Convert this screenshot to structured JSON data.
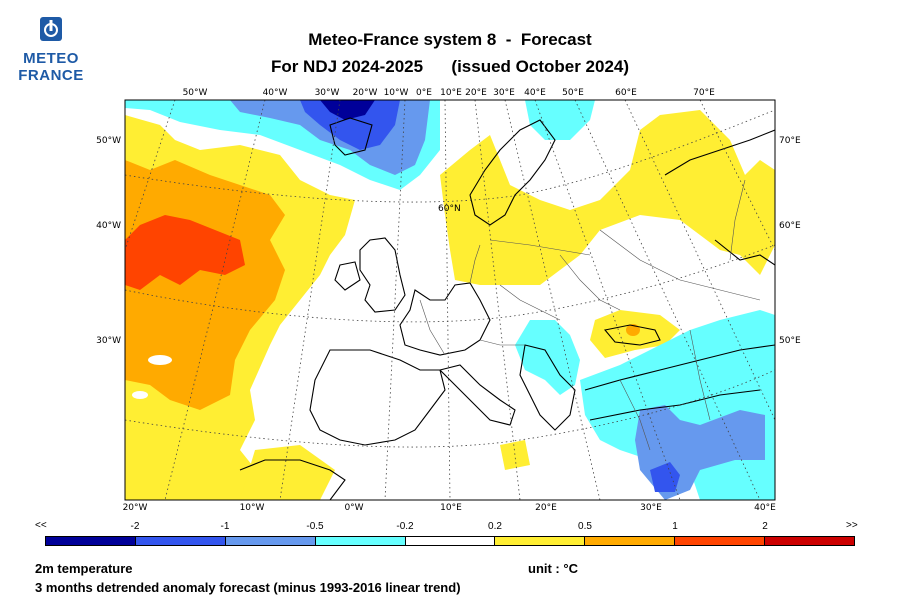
{
  "logo": {
    "line1": "METEO",
    "line2": "FRANCE"
  },
  "title": {
    "line1": "Meteo-France system 8  -  Forecast",
    "line2": "For NDJ 2024-2025      (issued October 2024)"
  },
  "map": {
    "top_labels": [
      "50°W",
      "40°W",
      "30°W",
      "20°W",
      "10°W",
      "0°E",
      "10°E",
      "20°E",
      "30°E",
      "40°E",
      "50°E",
      "60°E",
      "70°E"
    ],
    "bottom_labels": [
      "20°W",
      "10°W",
      "0°W",
      "10°E",
      "20°E",
      "30°E",
      "40°E"
    ],
    "left_labels": [
      "50°W",
      "40°W",
      "30°W"
    ],
    "right_labels": [
      "70°E",
      "60°E",
      "50°E"
    ],
    "inner_label": "60°N"
  },
  "legend": {
    "left_end": "<<",
    "right_end": ">>",
    "ticks": [
      "-2",
      "-1",
      "-0.5",
      "-0.2",
      "0.2",
      "0.5",
      "1",
      "2"
    ],
    "colors": [
      "#000099",
      "#3355ee",
      "#6699ee",
      "#66ffff",
      "#ffffff",
      "#ffee33",
      "#ffaa00",
      "#ff4400",
      "#cc0000"
    ]
  },
  "footer": {
    "variable": "2m temperature",
    "unit": "unit : °C",
    "description": "3 months detrended anomaly forecast (minus 1993-2016 linear trend)"
  },
  "colors": {
    "logo_blue": "#1e5aa6",
    "warm": "#ffee33",
    "hot": "#ffaa00",
    "hotter": "#ff4400",
    "cold": "#66ffff",
    "colder": "#6699ee",
    "coldest": "#3355ee"
  }
}
